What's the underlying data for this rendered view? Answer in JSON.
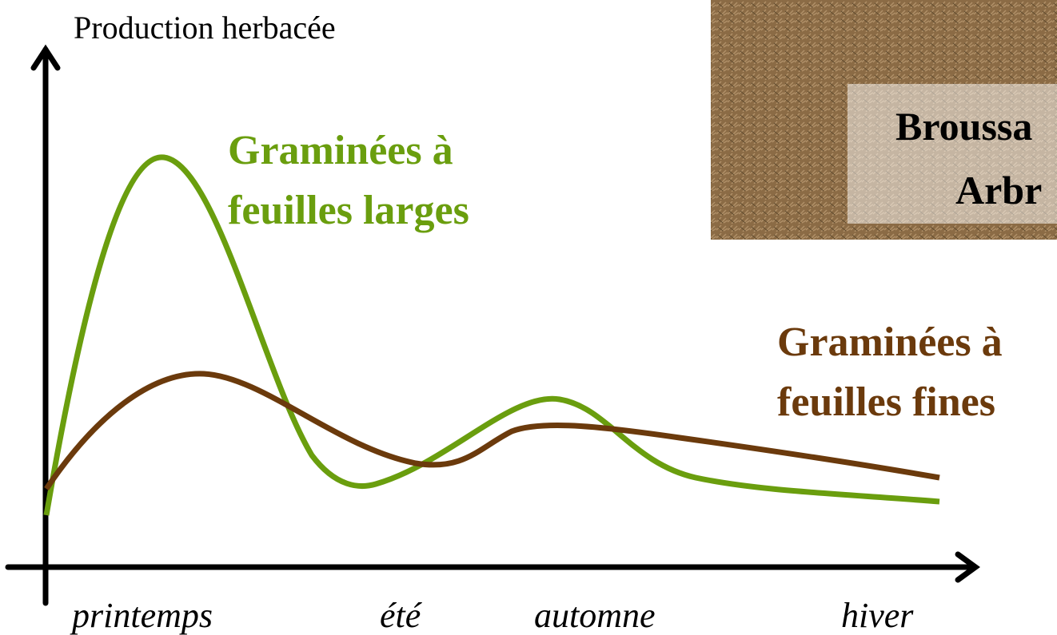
{
  "axis_label": "Production herbacée",
  "seasons": [
    "printemps",
    "été",
    "automne",
    "hiver"
  ],
  "curves": [
    {
      "label_lines": [
        "Graminées à",
        "feuilles larges"
      ]
    },
    {
      "label_lines": [
        "Graminées à",
        "feuilles fines"
      ]
    }
  ],
  "photo": {
    "caption_lines": [
      "Broussa",
      "Arbr"
    ]
  }
}
